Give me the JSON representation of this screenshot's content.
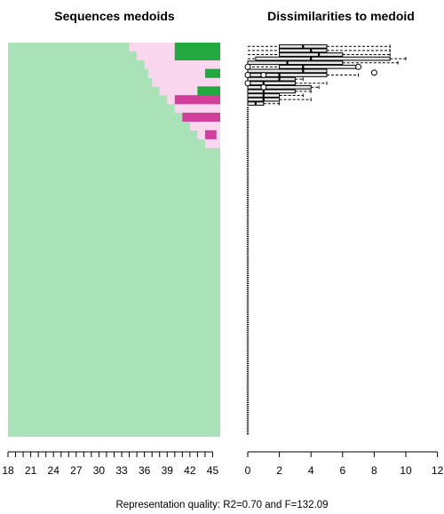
{
  "left_title": "Sequences medoids",
  "right_title": "Dissimilarities to medoid",
  "footer": "Representation quality: R2=0.70 and F=132.09",
  "colors": {
    "base": "#A8E2B6",
    "light_pink": "#FAD7EF",
    "green": "#21A83F",
    "magenta": "#D13F9B",
    "box_fill": "#E6E6E6"
  },
  "chart_data": [
    {
      "type": "sequence-index",
      "title": "Sequences medoids",
      "xlabel": "",
      "ylabel": "",
      "x_ticks": [
        "18",
        "21",
        "24",
        "27",
        "30",
        "33",
        "36",
        "39",
        "42",
        "45"
      ],
      "x_range": [
        18,
        46
      ],
      "n_sequences": 45,
      "states_by_column": "base state for all ages 18-34; light pink and dark green/magenta spells appear in the top rows from about age 34 onwards"
    },
    {
      "type": "boxplot",
      "title": "Dissimilarities to medoid",
      "xlabel": "",
      "ylabel": "",
      "x_ticks": [
        "0",
        "2",
        "4",
        "6",
        "8",
        "10",
        "12"
      ],
      "xlim": [
        0,
        12
      ],
      "boxes": [
        {
          "q1": 2.0,
          "median": 3.5,
          "q3": 5.0,
          "whisker_low": 0,
          "whisker_high": 9.0
        },
        {
          "q1": 2.0,
          "median": 4.0,
          "q3": 5.0,
          "whisker_low": 0,
          "whisker_high": 9.0
        },
        {
          "q1": 2.0,
          "median": 4.5,
          "q3": 6.0,
          "whisker_low": 0,
          "whisker_high": 9.0
        },
        {
          "q1": 0.5,
          "median": 4.0,
          "q3": 9.0,
          "whisker_low": 0,
          "whisker_high": 10.0
        },
        {
          "q1": 0.0,
          "median": 2.5,
          "q3": 6.0,
          "whisker_low": 0,
          "whisker_high": 9.5
        },
        {
          "q1": 2.0,
          "median": 3.5,
          "q3": 7.0,
          "whisker_low": 0,
          "whisker_high": 7.0
        },
        {
          "q1": 0.0,
          "median": 3.5,
          "q3": 5.0,
          "whisker_low": 0,
          "whisker_high": 5.0
        },
        {
          "q1": 0.0,
          "median": 2.0,
          "q3": 5.0,
          "whisker_low": 0,
          "whisker_high": 7.0
        },
        {
          "q1": 0.0,
          "median": 2.0,
          "q3": 3.0,
          "whisker_low": 0,
          "whisker_high": 3.5
        },
        {
          "q1": 0.0,
          "median": 1.0,
          "q3": 3.0,
          "whisker_low": 0,
          "whisker_high": 5.0
        },
        {
          "q1": 0.0,
          "median": 1.0,
          "q3": 4.0,
          "whisker_low": 0,
          "whisker_high": 4.5
        },
        {
          "q1": 0.0,
          "median": 1.0,
          "q3": 3.0,
          "whisker_low": 0,
          "whisker_high": 4.0
        },
        {
          "q1": 0.0,
          "median": 1.0,
          "q3": 2.0,
          "whisker_low": 0,
          "whisker_high": 3.5
        },
        {
          "q1": 0.0,
          "median": 1.0,
          "q3": 2.0,
          "whisker_low": 0,
          "whisker_high": 4.0
        },
        {
          "q1": 0.0,
          "median": 0.5,
          "q3": 1.0,
          "whisker_low": 0,
          "whisker_high": 2.0
        }
      ],
      "outliers": [
        {
          "box": 5,
          "value": 0.0
        },
        {
          "box": 5,
          "value": 7.0
        },
        {
          "box": 6,
          "value": 8.0
        },
        {
          "box": 7,
          "value": 0.0
        },
        {
          "box": 7,
          "value": 1.0
        },
        {
          "box": 9,
          "value": 0.0
        },
        {
          "box": 10,
          "value": 1.0
        }
      ],
      "remaining_rows_all_zero": true
    }
  ]
}
